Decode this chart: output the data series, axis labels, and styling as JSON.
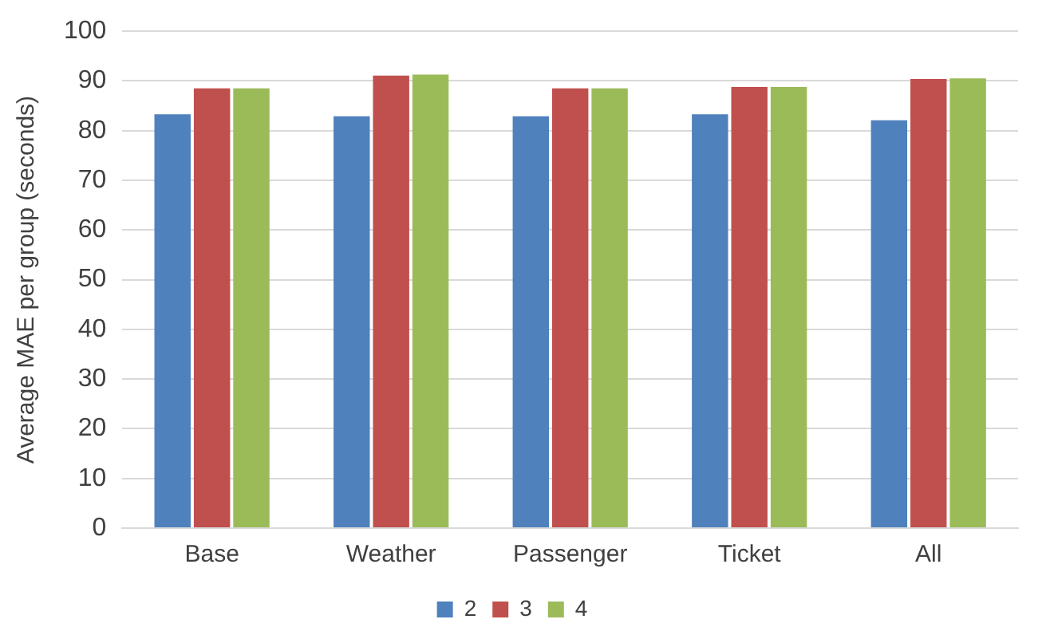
{
  "chart_data": {
    "type": "bar",
    "ylabel": "Average MAE per group (seconds)",
    "categories": [
      "Base",
      "Weather",
      "Passenger",
      "Ticket",
      "All"
    ],
    "series": [
      {
        "name": "2",
        "color": "#4f81bd",
        "values": [
          83.3,
          82.9,
          82.9,
          83.3,
          82.1
        ]
      },
      {
        "name": "3",
        "color": "#c0504d",
        "values": [
          88.5,
          91.1,
          88.5,
          88.8,
          90.4
        ]
      },
      {
        "name": "4",
        "color": "#9bbb59",
        "values": [
          88.5,
          91.3,
          88.5,
          88.8,
          90.5
        ]
      }
    ],
    "ylim": [
      0,
      100
    ],
    "yticks": [
      0,
      10,
      20,
      30,
      40,
      50,
      60,
      70,
      80,
      90,
      100
    ],
    "grid": "y",
    "legend": "bottom"
  }
}
